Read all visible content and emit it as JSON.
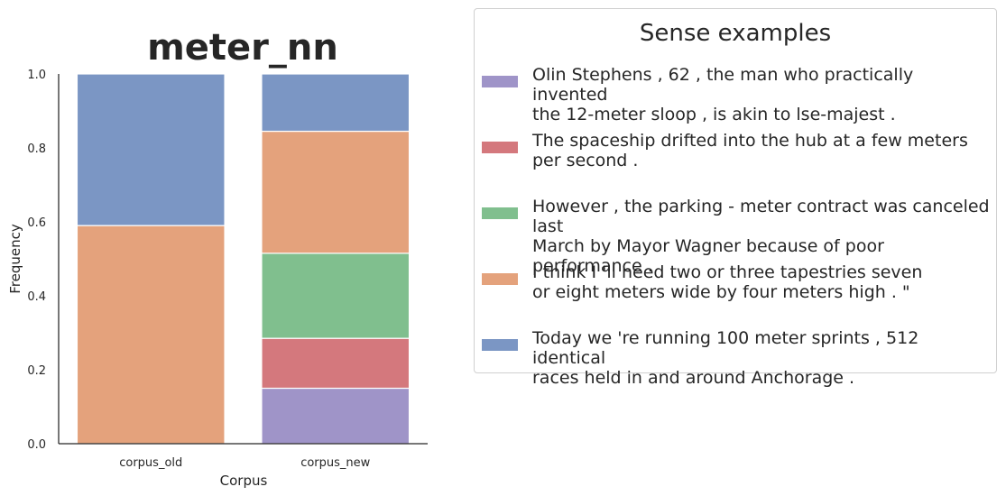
{
  "colors": {
    "sense_1": "#9f94c8",
    "sense_2": "#d4787d",
    "sense_3": "#80bf8e",
    "sense_4": "#e4a27c",
    "sense_5": "#7b96c4"
  },
  "chart_data": {
    "type": "bar",
    "stacked": true,
    "title": "meter_nn",
    "xlabel": "Corpus",
    "ylabel": "Frequency",
    "ylim": [
      0,
      1.0
    ],
    "yticks": [
      "0.0",
      "0.2",
      "0.4",
      "0.6",
      "0.8",
      "1.0"
    ],
    "categories": [
      "corpus_old",
      "corpus_new"
    ],
    "series": [
      {
        "name": "Olin Stephens , 62 , the man who practically invented the 12-meter sloop , is akin to lse-majest .",
        "color_key": "sense_1",
        "values": [
          0.0,
          0.15
        ]
      },
      {
        "name": "The spaceship drifted into the hub at a few meters per second .",
        "color_key": "sense_2",
        "values": [
          0.0,
          0.135
        ]
      },
      {
        "name": "However , the parking - meter contract was canceled last March by Mayor Wagner because of poor performance .",
        "color_key": "sense_3",
        "values": [
          0.0,
          0.23
        ]
      },
      {
        "name": "I think I 'll need two or three tapestries seven or eight meters wide by four meters high . \"",
        "color_key": "sense_4",
        "values": [
          0.59,
          0.33
        ]
      },
      {
        "name": "Today we 're running 100 meter sprints , 512 identical races held in and around Anchorage .",
        "color_key": "sense_5",
        "values": [
          0.41,
          0.155
        ]
      }
    ],
    "legend": {
      "title": "Sense examples",
      "placement": "right",
      "items": [
        {
          "line1": "Olin Stephens , 62 , the man who practically invented",
          "line2": "the 12-meter sloop , is akin to lse-majest .",
          "color_key": "sense_1"
        },
        {
          "line1": "The spaceship drifted into the hub at a few meters",
          "line2": "per second .",
          "color_key": "sense_2"
        },
        {
          "line1": "However , the parking - meter contract was canceled last",
          "line2": "March by Mayor Wagner because of poor performance .",
          "color_key": "sense_3"
        },
        {
          "line1": "I think I 'll need two or three tapestries seven",
          "line2": "or eight meters wide by four meters high . \"",
          "color_key": "sense_4"
        },
        {
          "line1": "Today we 're running 100 meter sprints , 512 identical",
          "line2": "races held in and around Anchorage .",
          "color_key": "sense_5"
        }
      ]
    }
  }
}
